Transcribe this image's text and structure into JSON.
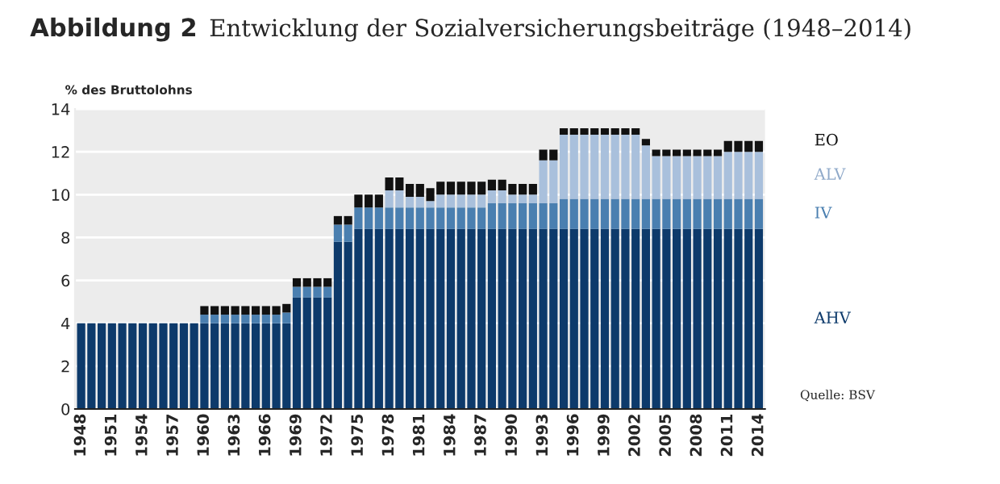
{
  "chart_data": {
    "type": "bar",
    "stacked": true,
    "title": "Abbildung 2",
    "subtitle": "Entwicklung der Sozialversicherungsbeiträge (1948–2014)",
    "ylabel": "% des Bruttolohns",
    "annotations": [
      "Quelle: BSV"
    ],
    "categories": [
      "1948",
      null,
      null,
      "1951",
      null,
      null,
      "1954",
      null,
      null,
      "1957",
      null,
      null,
      "1960",
      null,
      null,
      "1963",
      null,
      null,
      "1966",
      null,
      null,
      "1969",
      null,
      null,
      "1972",
      null,
      null,
      "1975",
      null,
      null,
      "1978",
      null,
      null,
      "1981",
      null,
      null,
      "1984",
      null,
      null,
      "1987",
      null,
      null,
      "1990",
      null,
      null,
      "1993",
      null,
      null,
      "1996",
      null,
      null,
      "1999",
      null,
      null,
      "2002",
      null,
      null,
      "2005",
      null,
      null,
      "2008",
      null,
      null,
      "2011",
      null,
      null,
      "2014"
    ],
    "series": [
      {
        "name": "AHV",
        "color": "#0d3a6b",
        "values": [
          4,
          4,
          4,
          4,
          4,
          4,
          4,
          4,
          4,
          4,
          4,
          4,
          4,
          4,
          4,
          4,
          4,
          4,
          4,
          4,
          4,
          5.2,
          5.2,
          5.2,
          5.2,
          7.8,
          7.8,
          8.4,
          8.4,
          8.4,
          8.4,
          8.4,
          8.4,
          8.4,
          8.4,
          8.4,
          8.4,
          8.4,
          8.4,
          8.4,
          8.4,
          8.4,
          8.4,
          8.4,
          8.4,
          8.4,
          8.4,
          8.4,
          8.4,
          8.4,
          8.4,
          8.4,
          8.4,
          8.4,
          8.4,
          8.4,
          8.4,
          8.4,
          8.4,
          8.4,
          8.4,
          8.4,
          8.4,
          8.4,
          8.4,
          8.4,
          8.4
        ]
      },
      {
        "name": "IV",
        "color": "#4a7fb0",
        "values": [
          0,
          0,
          0,
          0,
          0,
          0,
          0,
          0,
          0,
          0,
          0,
          0,
          0.4,
          0.4,
          0.4,
          0.4,
          0.4,
          0.4,
          0.4,
          0.4,
          0.5,
          0.5,
          0.5,
          0.5,
          0.5,
          0.8,
          0.8,
          1,
          1,
          1,
          1,
          1,
          1,
          1,
          1,
          1,
          1,
          1,
          1,
          1,
          1.2,
          1.2,
          1.2,
          1.2,
          1.2,
          1.2,
          1.2,
          1.4,
          1.4,
          1.4,
          1.4,
          1.4,
          1.4,
          1.4,
          1.4,
          1.4,
          1.4,
          1.4,
          1.4,
          1.4,
          1.4,
          1.4,
          1.4,
          1.4,
          1.4,
          1.4,
          1.4
        ]
      },
      {
        "name": "ALV",
        "color": "#a9c0dc",
        "values": [
          0,
          0,
          0,
          0,
          0,
          0,
          0,
          0,
          0,
          0,
          0,
          0,
          0,
          0,
          0,
          0,
          0,
          0,
          0,
          0,
          0,
          0,
          0,
          0,
          0,
          0,
          0,
          0,
          0,
          0,
          0.8,
          0.8,
          0.5,
          0.5,
          0.3,
          0.6,
          0.6,
          0.6,
          0.6,
          0.6,
          0.6,
          0.6,
          0.4,
          0.4,
          0.4,
          2,
          2,
          3,
          3,
          3,
          3,
          3,
          3,
          3,
          3,
          2.5,
          2,
          2,
          2,
          2,
          2,
          2,
          2,
          2.2,
          2.2,
          2.2,
          2.2
        ]
      },
      {
        "name": "EO",
        "color": "#111111",
        "values": [
          0,
          0,
          0,
          0,
          0,
          0,
          0,
          0,
          0,
          0,
          0,
          0,
          0.4,
          0.4,
          0.4,
          0.4,
          0.4,
          0.4,
          0.4,
          0.4,
          0.4,
          0.4,
          0.4,
          0.4,
          0.4,
          0.4,
          0.4,
          0.6,
          0.6,
          0.6,
          0.6,
          0.6,
          0.6,
          0.6,
          0.6,
          0.6,
          0.6,
          0.6,
          0.6,
          0.6,
          0.5,
          0.5,
          0.5,
          0.5,
          0.5,
          0.5,
          0.5,
          0.3,
          0.3,
          0.3,
          0.3,
          0.3,
          0.3,
          0.3,
          0.3,
          0.3,
          0.3,
          0.3,
          0.3,
          0.3,
          0.3,
          0.3,
          0.3,
          0.5,
          0.5,
          0.5,
          0.5
        ]
      }
    ],
    "ylim": [
      0,
      14
    ],
    "yticks": [
      0,
      2,
      4,
      6,
      8,
      10,
      12,
      14
    ],
    "grid": "y",
    "legend": "right"
  }
}
